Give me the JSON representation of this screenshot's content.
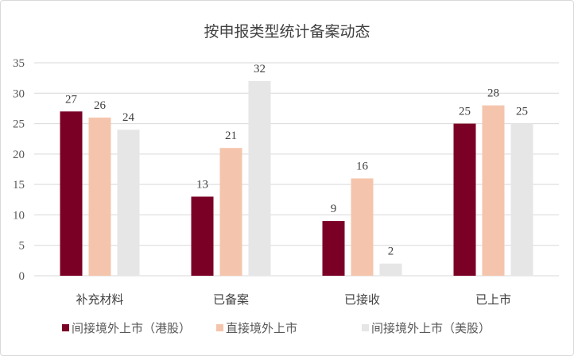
{
  "chart_data": {
    "type": "bar",
    "title": "按申报类型统计备案动态",
    "categories": [
      "补充材料",
      "已备案",
      "已接收",
      "已上市"
    ],
    "series": [
      {
        "name": "间接境外上市（港股）",
        "values": [
          27,
          13,
          9,
          25
        ],
        "color": "#7B0025"
      },
      {
        "name": "直接境外上市",
        "values": [
          26,
          21,
          16,
          28
        ],
        "color": "#F4C5AC"
      },
      {
        "name": "间接境外上市（美股）",
        "values": [
          24,
          32,
          2,
          25
        ],
        "color": "#E6E6E6"
      }
    ],
    "xlabel": "",
    "ylabel": "",
    "ylim": [
      0,
      35
    ],
    "yticks": [
      0,
      5,
      10,
      15,
      20,
      25,
      30,
      35
    ],
    "grid": true,
    "legend": "bottom",
    "data_labels": true
  }
}
